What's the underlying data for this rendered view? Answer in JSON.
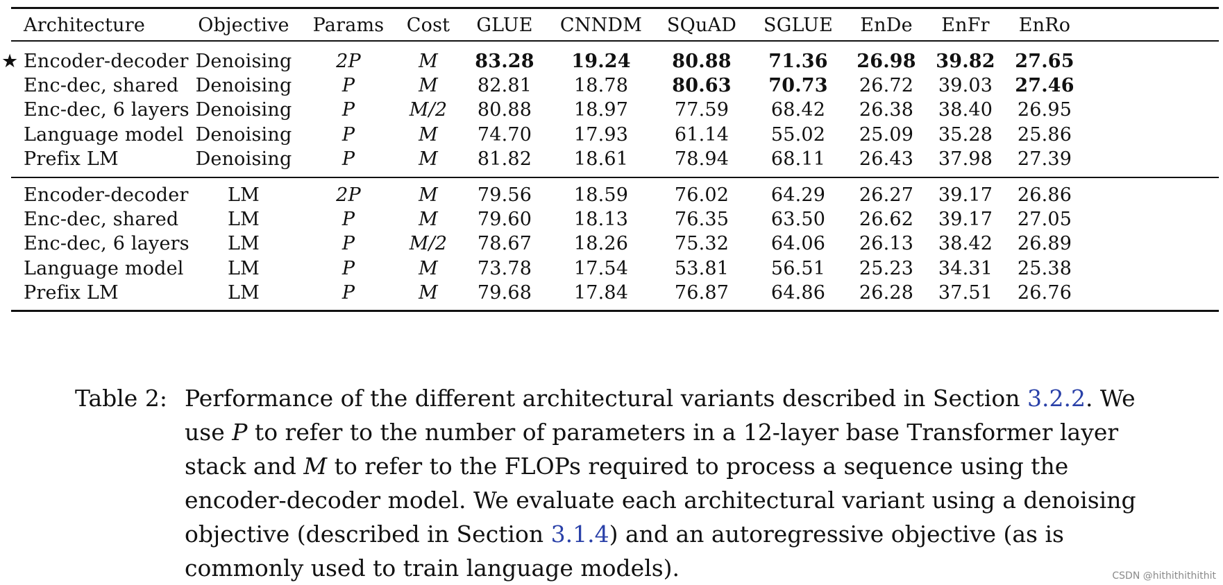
{
  "table": {
    "headers": [
      "Architecture",
      "Objective",
      "Params",
      "Cost",
      "GLUE",
      "CNNDM",
      "SQuAD",
      "SGLUE",
      "EnDe",
      "EnFr",
      "EnRo"
    ],
    "baseline_marker": "★",
    "group1": [
      {
        "arch": "Encoder-decoder",
        "obj": "Denoising",
        "params": "2P",
        "cost": "M",
        "vals": [
          "83.28",
          "19.24",
          "80.88",
          "71.36",
          "26.98",
          "39.82",
          "27.65"
        ],
        "bold": [
          true,
          true,
          true,
          true,
          true,
          true,
          true
        ]
      },
      {
        "arch": "Enc-dec, shared",
        "obj": "Denoising",
        "params": "P",
        "cost": "M",
        "vals": [
          "82.81",
          "18.78",
          "80.63",
          "70.73",
          "26.72",
          "39.03",
          "27.46"
        ],
        "bold": [
          false,
          false,
          true,
          true,
          false,
          false,
          true
        ]
      },
      {
        "arch": "Enc-dec, 6 layers",
        "obj": "Denoising",
        "params": "P",
        "cost": "M/2",
        "vals": [
          "80.88",
          "18.97",
          "77.59",
          "68.42",
          "26.38",
          "38.40",
          "26.95"
        ],
        "bold": [
          false,
          false,
          false,
          false,
          false,
          false,
          false
        ]
      },
      {
        "arch": "Language model",
        "obj": "Denoising",
        "params": "P",
        "cost": "M",
        "vals": [
          "74.70",
          "17.93",
          "61.14",
          "55.02",
          "25.09",
          "35.28",
          "25.86"
        ],
        "bold": [
          false,
          false,
          false,
          false,
          false,
          false,
          false
        ]
      },
      {
        "arch": "Prefix LM",
        "obj": "Denoising",
        "params": "P",
        "cost": "M",
        "vals": [
          "81.82",
          "18.61",
          "78.94",
          "68.11",
          "26.43",
          "37.98",
          "27.39"
        ],
        "bold": [
          false,
          false,
          false,
          false,
          false,
          false,
          false
        ]
      }
    ],
    "group2": [
      {
        "arch": "Encoder-decoder",
        "obj": "LM",
        "params": "2P",
        "cost": "M",
        "vals": [
          "79.56",
          "18.59",
          "76.02",
          "64.29",
          "26.27",
          "39.17",
          "26.86"
        ],
        "bold": [
          false,
          false,
          false,
          false,
          false,
          false,
          false
        ]
      },
      {
        "arch": "Enc-dec, shared",
        "obj": "LM",
        "params": "P",
        "cost": "M",
        "vals": [
          "79.60",
          "18.13",
          "76.35",
          "63.50",
          "26.62",
          "39.17",
          "27.05"
        ],
        "bold": [
          false,
          false,
          false,
          false,
          false,
          false,
          false
        ]
      },
      {
        "arch": "Enc-dec, 6 layers",
        "obj": "LM",
        "params": "P",
        "cost": "M/2",
        "vals": [
          "78.67",
          "18.26",
          "75.32",
          "64.06",
          "26.13",
          "38.42",
          "26.89"
        ],
        "bold": [
          false,
          false,
          false,
          false,
          false,
          false,
          false
        ]
      },
      {
        "arch": "Language model",
        "obj": "LM",
        "params": "P",
        "cost": "M",
        "vals": [
          "73.78",
          "17.54",
          "53.81",
          "56.51",
          "25.23",
          "34.31",
          "25.38"
        ],
        "bold": [
          false,
          false,
          false,
          false,
          false,
          false,
          false
        ]
      },
      {
        "arch": "Prefix LM",
        "obj": "LM",
        "params": "P",
        "cost": "M",
        "vals": [
          "79.68",
          "17.84",
          "76.87",
          "64.86",
          "26.28",
          "37.51",
          "26.76"
        ],
        "bold": [
          false,
          false,
          false,
          false,
          false,
          false,
          false
        ]
      }
    ]
  },
  "caption": {
    "label": "Table 2:",
    "part1": "Performance of the different architectural variants described in Section ",
    "ref1": "3.2.2",
    "part2": ". We use ",
    "sym_p": "P",
    "part3": " to refer to the number of parameters in a 12-layer base Transformer layer stack and ",
    "sym_m": "M",
    "part4": " to refer to the FLOPs required to process a sequence using the encoder-decoder model. We evaluate each architectural variant using a denoising objective (described in Section ",
    "ref2": "3.1.4",
    "part5": ") and an autoregressive objective (as is commonly used to train language models)."
  },
  "watermark": "CSDN @hithithithithit"
}
